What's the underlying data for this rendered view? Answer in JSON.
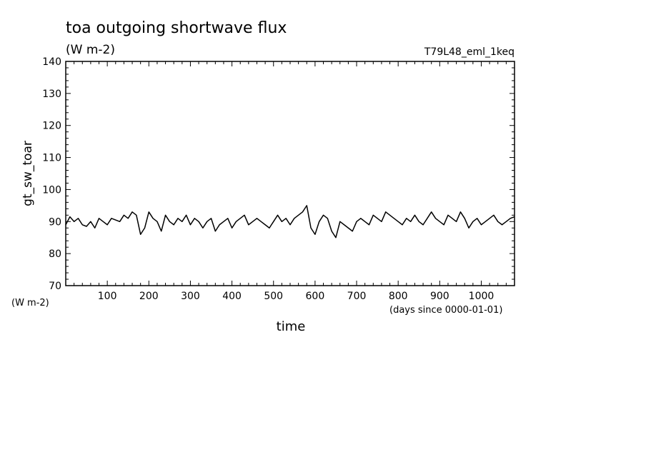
{
  "chart_data": {
    "type": "line",
    "title": "toa outgoing shortwave flux",
    "subtitle": "(W m-2)",
    "run_label": "T79L48_eml_1keq",
    "ylabel": "gt_sw_toar",
    "ylabel_units": "(W m-2)",
    "xlabel": "time",
    "xlabel_units": "(days since 0000-01-01)",
    "xlim": [
      0,
      1080
    ],
    "ylim": [
      70,
      140
    ],
    "x_ticks": [
      100,
      200,
      300,
      400,
      500,
      600,
      700,
      800,
      900,
      1000
    ],
    "y_ticks": [
      70,
      80,
      90,
      100,
      110,
      120,
      130,
      140
    ],
    "grid": false,
    "legend": "none",
    "color": "#000000",
    "series": [
      {
        "x": [
          0,
          10,
          20,
          30,
          40,
          50,
          60,
          70,
          80,
          90,
          100,
          110,
          120,
          130,
          140,
          150,
          160,
          170,
          180,
          190,
          200,
          210,
          220,
          230,
          240,
          250,
          260,
          270,
          280,
          290,
          300,
          310,
          320,
          330,
          340,
          350,
          360,
          370,
          380,
          390,
          400,
          410,
          420,
          430,
          440,
          450,
          460,
          470,
          480,
          490,
          500,
          510,
          520,
          530,
          540,
          550,
          560,
          570,
          580,
          590,
          600,
          610,
          620,
          630,
          640,
          650,
          660,
          670,
          680,
          690,
          700,
          710,
          720,
          730,
          740,
          750,
          760,
          770,
          780,
          790,
          800,
          810,
          820,
          830,
          840,
          850,
          860,
          870,
          880,
          890,
          900,
          910,
          920,
          930,
          940,
          950,
          960,
          970,
          980,
          990,
          1000,
          1010,
          1020,
          1030,
          1040,
          1050,
          1060,
          1070,
          1080
        ],
        "values": [
          89,
          91.5,
          90,
          91,
          89,
          88.5,
          90,
          88,
          91,
          90,
          89,
          91,
          90.5,
          90,
          92,
          91,
          93,
          92,
          86,
          88,
          93,
          91,
          90,
          87,
          92,
          90,
          89,
          91,
          90,
          92,
          89,
          91,
          90,
          88,
          90,
          91,
          87,
          89,
          90,
          91,
          88,
          90,
          91,
          92,
          89,
          90,
          91,
          90,
          89,
          88,
          90,
          92,
          90,
          91,
          89,
          91,
          92,
          93,
          95,
          88,
          86,
          90,
          92,
          91,
          87,
          85,
          90,
          89,
          88,
          87,
          90,
          91,
          90,
          89,
          92,
          91,
          90,
          93,
          92,
          91,
          90,
          89,
          91,
          90,
          92,
          90,
          89,
          91,
          93,
          91,
          90,
          89,
          92,
          91,
          90,
          93,
          91,
          88,
          90,
          91,
          89,
          90,
          91,
          92,
          90,
          89,
          90,
          91,
          91.5
        ]
      }
    ]
  }
}
